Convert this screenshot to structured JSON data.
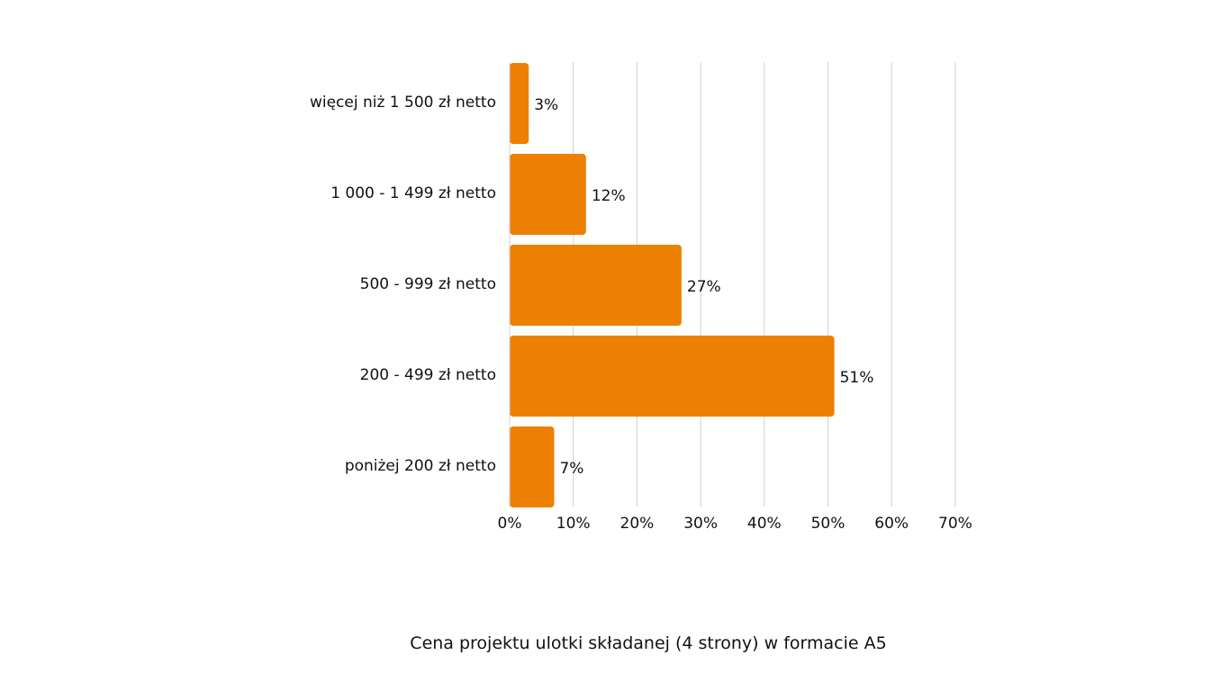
{
  "chart_data": {
    "type": "bar",
    "orientation": "horizontal",
    "title": "Cena projektu ulotki składanej (4 strony) w formacie A5",
    "categories": [
      "więcej niż 1 500 zł netto",
      "1 000 - 1 499 zł netto",
      "500 - 999 zł netto",
      "200 - 499 zł netto",
      "poniżej 200 zł netto"
    ],
    "values": [
      3,
      12,
      27,
      51,
      7
    ],
    "data_labels": [
      "3%",
      "12%",
      "27%",
      "51%",
      "7%"
    ],
    "xlim": [
      0,
      70
    ],
    "xticks": [
      0,
      10,
      20,
      30,
      40,
      50,
      60,
      70
    ],
    "xtick_labels": [
      "0%",
      "10%",
      "20%",
      "30%",
      "40%",
      "50%",
      "60%",
      "70%"
    ],
    "grid": "vertical",
    "legend": "none",
    "colors": {
      "bar": "#ED8002",
      "grid": "#D0D0D0",
      "text": "#111111"
    }
  }
}
